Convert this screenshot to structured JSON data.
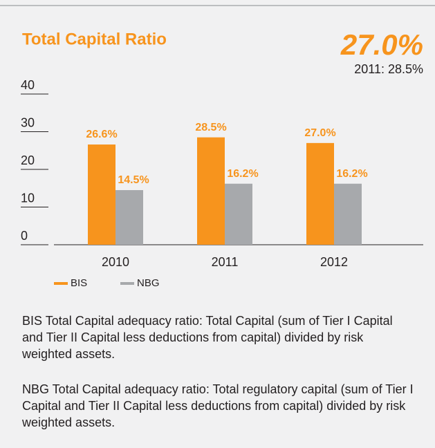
{
  "chart_data": {
    "type": "bar",
    "title": "Total Capital Ratio",
    "headline": "27.0%",
    "headline_note": "2011: 28.5%",
    "categories": [
      "2010",
      "2011",
      "2012"
    ],
    "series": [
      {
        "name": "BIS",
        "color": "#f7941d",
        "values": [
          26.6,
          28.5,
          27.0
        ],
        "value_labels": [
          "26.6%",
          "28.5%",
          "27.0%"
        ]
      },
      {
        "name": "NBG",
        "color": "#a7a9ac",
        "values": [
          14.5,
          16.2,
          16.2
        ],
        "value_labels": [
          "14.5%",
          "16.2%",
          "16.2%"
        ]
      }
    ],
    "ylim": [
      0,
      40
    ],
    "yticks": [
      0,
      10,
      20,
      30,
      40
    ]
  },
  "notes": [
    "BIS Total Capital adequacy ratio: Total Capital (sum of Tier I Capital and Tier II Capital less deductions from capital) divided by risk weighted assets.",
    "NBG Total Capital adequacy ratio: Total regulatory capital (sum of Tier I Capital and Tier II Capital less deductions from capital) divided by risk weighted assets."
  ]
}
